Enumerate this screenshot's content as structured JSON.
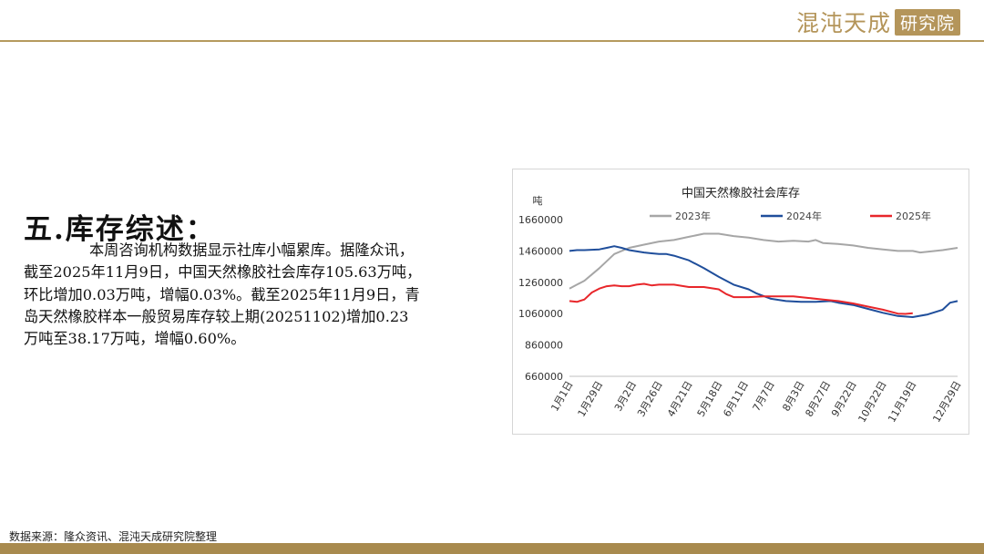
{
  "logo": {
    "name": "混沌天成",
    "box_text": "研究院"
  },
  "section_title": "五.库存综述：",
  "summary_lines": [
    "本周咨询机构数据显示社库小幅累库。据隆众讯，",
    "截至2025年11月9日，中国天然橡胶社会库存105.63万吨，",
    "环比增加0.03万吨，增幅0.03%。截至2025年11月9日，青",
    "岛天然橡胶样本一般贸易库存较上期(20251102)增加0.23",
    "万吨至38.17万吨，增幅0.60%。"
  ],
  "source_note": "数据来源：隆众资讯、混沌天成研究院整理",
  "colors": {
    "gold": "#b4955a",
    "series_2023": "#a6a6a6",
    "series_2024": "#1f4e9b",
    "series_2025": "#e8262a"
  },
  "chart_data": {
    "type": "line",
    "title": "中国天然橡胶社会库存",
    "ylabel": "吨",
    "ylim": [
      660000,
      1660000
    ],
    "yticks": [
      660000,
      860000,
      1060000,
      1260000,
      1460000,
      1660000
    ],
    "ytick_labels": [
      "660000",
      "860000",
      "1060000",
      "1260000",
      "1460000",
      "1660000"
    ],
    "x_tick_labels": [
      "1月1日",
      "1月29日",
      "3月2日",
      "3月26日",
      "4月21日",
      "5月18日",
      "6月11日",
      "7月7日",
      "8月3日",
      "8月27日",
      "9月22日",
      "10月22日",
      "11月19日",
      "12月29日"
    ],
    "x_tick_weeks": [
      0,
      4,
      8.5,
      12,
      16,
      20,
      23.5,
      27,
      31,
      34.5,
      38,
      42,
      46,
      52
    ],
    "x_range": [
      0,
      52
    ],
    "legend_position": "top",
    "grid": false,
    "series": [
      {
        "name": "2023年",
        "x": [
          0,
          2,
          4,
          6,
          8,
          10,
          12,
          14,
          16,
          18,
          20,
          22,
          24,
          26,
          28,
          30,
          32,
          33,
          34,
          36,
          38,
          40,
          42,
          44,
          46,
          47,
          48,
          50,
          52
        ],
        "values": [
          1220000,
          1270000,
          1350000,
          1440000,
          1480000,
          1500000,
          1520000,
          1530000,
          1550000,
          1570000,
          1570000,
          1555000,
          1545000,
          1530000,
          1520000,
          1525000,
          1520000,
          1530000,
          1510000,
          1505000,
          1495000,
          1480000,
          1470000,
          1460000,
          1460000,
          1450000,
          1455000,
          1465000,
          1480000
        ]
      },
      {
        "name": "2024年",
        "x": [
          0,
          1,
          2,
          4,
          5,
          6,
          7,
          8,
          10,
          11,
          12,
          13,
          14,
          16,
          18,
          20,
          22,
          24,
          25,
          27,
          29,
          31,
          33,
          35,
          36,
          38,
          40,
          42,
          44,
          46,
          48,
          50,
          51,
          52
        ],
        "values": [
          1460000,
          1465000,
          1465000,
          1470000,
          1480000,
          1490000,
          1480000,
          1465000,
          1450000,
          1445000,
          1440000,
          1440000,
          1430000,
          1400000,
          1350000,
          1295000,
          1245000,
          1215000,
          1190000,
          1155000,
          1140000,
          1135000,
          1135000,
          1140000,
          1130000,
          1115000,
          1090000,
          1065000,
          1045000,
          1038000,
          1055000,
          1085000,
          1130000,
          1140000
        ]
      },
      {
        "name": "2025年",
        "x": [
          0,
          1,
          2,
          3,
          4,
          5,
          6,
          7,
          8,
          9,
          10,
          11,
          12,
          13,
          14,
          16,
          18,
          20,
          21,
          22,
          24,
          26,
          28,
          30,
          32,
          34,
          36,
          38,
          40,
          42,
          44,
          45,
          46
        ],
        "values": [
          1140000,
          1135000,
          1150000,
          1195000,
          1220000,
          1235000,
          1240000,
          1235000,
          1235000,
          1245000,
          1250000,
          1240000,
          1245000,
          1245000,
          1245000,
          1230000,
          1230000,
          1215000,
          1185000,
          1165000,
          1165000,
          1170000,
          1170000,
          1170000,
          1160000,
          1150000,
          1140000,
          1125000,
          1105000,
          1085000,
          1060000,
          1058000,
          1063000
        ]
      }
    ]
  }
}
